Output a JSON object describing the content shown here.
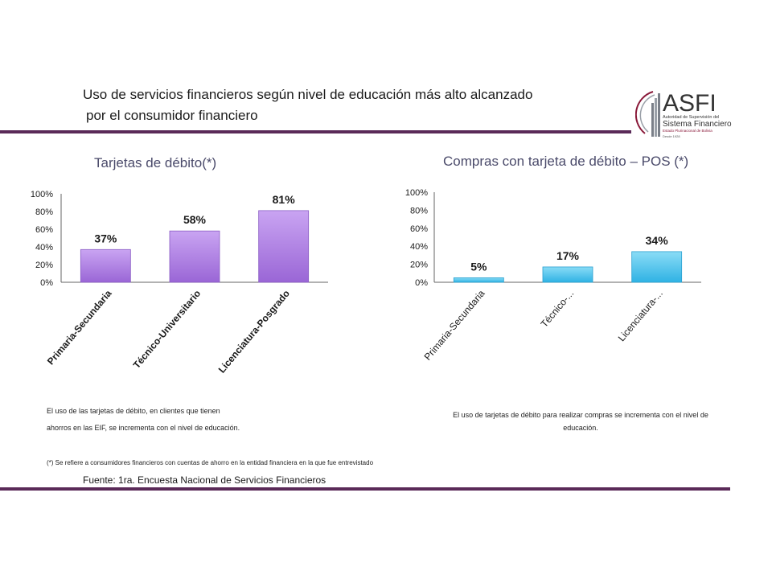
{
  "header": {
    "title_line1": "Uso de servicios financieros según nivel de educación más alto alcanzado",
    "title_line2": "por el consumidor financiero"
  },
  "logo": {
    "name": "ASFI",
    "line1": "Autoridad de Supervisión del",
    "line2": "Sistema Financiero",
    "line3": "Estado Plurinacional de Bolivia",
    "line4": "Desde 1928"
  },
  "colors": {
    "bar_purple": "#b48ce6",
    "bar_blue": "#5cc8ec",
    "accent": "#5a2a58"
  },
  "chart_data": [
    {
      "type": "bar",
      "title": "Tarjetas de débito(*)",
      "categories": [
        "Primaria-Secundaria",
        "Técnico-Universitario",
        "Licenciatura-Posgrado"
      ],
      "values": [
        37,
        58,
        81
      ],
      "labels": [
        "37%",
        "58%",
        "81%"
      ],
      "yticks": [
        "100%",
        "80%",
        "60%",
        "40%",
        "20%",
        "0%"
      ],
      "ylim": [
        0,
        100
      ]
    },
    {
      "type": "bar",
      "title": "Compras con tarjeta de débito – POS (*)",
      "categories": [
        "Primaria-Secundaria",
        "Técnico-...",
        "Licenciatura-..."
      ],
      "values": [
        5,
        17,
        34
      ],
      "labels": [
        "5%",
        "17%",
        "34%"
      ],
      "yticks": [
        "100%",
        "80%",
        "60%",
        "40%",
        "20%",
        "0%"
      ],
      "ylim": [
        0,
        100
      ]
    }
  ],
  "notes": {
    "left_line1": "El uso de las tarjetas de débito, en clientes que tienen",
    "left_line2": "ahorros en las EIF, se incrementa con el nivel de educación.",
    "right": "El uso de tarjetas de débito para realizar compras se incrementa con el nivel de educación.",
    "footnote": "(*) Se refiere a consumidores financieros con cuentas de ahorro en la entidad financiera en la que fue entrevistado",
    "source": "Fuente: 1ra. Encuesta Nacional de Servicios Financieros"
  }
}
